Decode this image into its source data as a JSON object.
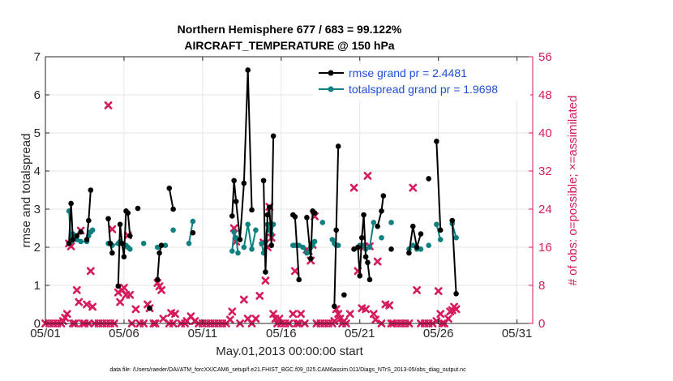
{
  "chart_data": {
    "type": "line",
    "title_line1": "Northern Hemisphere 677 / 683 = 99.122%",
    "title_line2": "AIRCRAFT_TEMPERATURE @ 150 hPa",
    "xlabel": "May.01,2013 00:00:00 start",
    "ylabel_left": "rmse and totalspread",
    "ylabel_right": "# of obs: o=possible; ×=assimilated",
    "footnote": "data file: /Users/raeder/DAI/ATM_forcXX/CAM6_setup/f.e21.FHIST_BGC.f09_025.CAM6assim.011/Diags_NTrS_2013-05/obs_diag_output.nc",
    "xlim": [
      1,
      32
    ],
    "ylim_left": [
      0,
      7
    ],
    "ylim_right": [
      0,
      56
    ],
    "x_ticks": [
      1,
      6,
      11,
      16,
      21,
      26,
      31
    ],
    "x_tick_labels": [
      "05/01",
      "05/06",
      "05/11",
      "05/16",
      "05/21",
      "05/26",
      "05/31"
    ],
    "y_left_ticks": [
      "0",
      "1",
      "2",
      "3",
      "4",
      "5",
      "6",
      "7"
    ],
    "y_right_ticks": [
      "0",
      "8",
      "16",
      "24",
      "32",
      "40",
      "48",
      "56"
    ],
    "colors": {
      "rmse": "#000000",
      "spread": "#0f8080",
      "obs": "#d61a5e",
      "legend_text": "#1f4fd6",
      "right_axis": "#d61a5e"
    },
    "legend": [
      {
        "label": "rmse grand pr = 2.4481",
        "series": "rmse"
      },
      {
        "label": "totalspread grand pr = 1.9698",
        "series": "spread"
      }
    ],
    "series": [
      {
        "name": "rmse",
        "axis": "left",
        "points": [
          [
            2.5,
            2.1
          ],
          [
            2.63,
            3.15
          ],
          [
            2.75,
            2.2
          ],
          null,
          [
            3.0,
            2.3
          ],
          [
            3.25,
            2.4
          ],
          null,
          [
            3.63,
            2.2
          ],
          [
            3.75,
            2.7
          ],
          [
            3.88,
            3.5
          ],
          null,
          [
            5.0,
            2.75
          ],
          [
            5.13,
            2.1
          ],
          [
            5.25,
            1.85
          ],
          null,
          [
            5.63,
            0.98
          ],
          [
            5.75,
            2.6
          ],
          [
            5.88,
            2.1
          ],
          [
            6.0,
            1.75
          ],
          [
            6.13,
            2.95
          ],
          [
            6.25,
            2.9
          ],
          [
            6.38,
            2.3
          ],
          null,
          [
            6.88,
            3.02
          ],
          null,
          [
            7.63,
            0.4
          ],
          null,
          [
            8.13,
            1.15
          ],
          [
            8.25,
            1.85
          ],
          [
            8.38,
            2.05
          ],
          null,
          [
            8.88,
            3.55
          ],
          [
            9.13,
            3.0
          ],
          null,
          [
            10.38,
            2.38
          ],
          null,
          [
            12.88,
            2.82
          ],
          [
            13.0,
            3.75
          ],
          [
            13.13,
            3.2
          ],
          [
            13.38,
            2.2
          ],
          [
            13.63,
            3.68
          ],
          [
            13.88,
            6.65
          ],
          [
            14.13,
            2.98
          ],
          null,
          [
            14.88,
            3.75
          ],
          [
            15.0,
            1.35
          ],
          [
            15.13,
            2.85
          ],
          [
            15.25,
            3.05
          ],
          [
            15.38,
            2.05
          ],
          [
            15.5,
            4.92
          ],
          null,
          [
            16.75,
            2.85
          ],
          [
            16.88,
            2.8
          ],
          [
            17.13,
            1.15
          ],
          null,
          [
            17.63,
            2.78
          ],
          [
            17.88,
            1.7
          ],
          [
            18.0,
            2.95
          ],
          [
            18.13,
            2.9
          ],
          null,
          [
            19.38,
            0.45
          ],
          [
            19.5,
            2.45
          ],
          [
            19.63,
            4.65
          ],
          null,
          [
            20.0,
            0.75
          ],
          null,
          [
            20.63,
            1.95
          ],
          [
            20.88,
            2.0
          ],
          [
            21.0,
            1.25
          ],
          [
            21.13,
            2.25
          ],
          [
            21.25,
            2.85
          ],
          [
            21.38,
            1.75
          ],
          [
            21.5,
            1.6
          ],
          [
            21.63,
            1.15
          ],
          null,
          [
            22.13,
            2.55
          ],
          [
            22.38,
            2.95
          ],
          [
            22.5,
            3.35
          ],
          null,
          [
            23.0,
            1.95
          ],
          null,
          [
            24.13,
            1.85
          ],
          [
            24.38,
            2.55
          ],
          [
            24.63,
            2.0
          ],
          [
            24.88,
            2.35
          ],
          null,
          [
            25.38,
            3.8
          ],
          null,
          [
            25.88,
            4.78
          ],
          [
            26.13,
            2.45
          ],
          null,
          [
            26.88,
            2.7
          ],
          [
            27.13,
            0.78
          ]
        ]
      },
      {
        "name": "totalspread",
        "axis": "left",
        "points": [
          [
            2.5,
            2.95
          ],
          [
            2.63,
            2.15
          ],
          [
            2.75,
            2.35
          ],
          [
            3.0,
            2.2
          ],
          [
            3.25,
            2.15
          ],
          [
            3.63,
            2.15
          ],
          [
            3.75,
            2.3
          ],
          [
            3.88,
            2.4
          ],
          [
            4.0,
            2.45
          ],
          null,
          [
            5.0,
            2.1
          ],
          [
            5.13,
            2.1
          ],
          [
            5.25,
            2.05
          ],
          [
            5.63,
            2.1
          ],
          [
            5.75,
            2.15
          ],
          [
            5.88,
            2.1
          ],
          [
            6.13,
            2.05
          ],
          [
            6.25,
            2.0
          ],
          [
            6.38,
            1.95
          ],
          null,
          [
            7.25,
            2.1
          ],
          null,
          [
            8.13,
            2.0
          ],
          null,
          [
            8.63,
            2.05
          ],
          null,
          [
            9.13,
            2.45
          ],
          null,
          [
            10.13,
            2.1
          ],
          [
            10.38,
            2.68
          ],
          null,
          [
            12.88,
            1.9
          ],
          [
            13.0,
            2.4
          ],
          [
            13.13,
            2.25
          ],
          [
            13.25,
            1.85
          ],
          null,
          [
            13.63,
            2.0
          ],
          [
            13.88,
            2.6
          ],
          [
            14.13,
            1.95
          ],
          [
            14.38,
            2.45
          ],
          null,
          [
            14.75,
            2.1
          ],
          [
            14.88,
            1.85
          ],
          [
            15.0,
            2.15
          ],
          [
            15.13,
            2.6
          ],
          [
            15.25,
            2.45
          ],
          [
            15.38,
            2.35
          ],
          [
            15.5,
            2.6
          ],
          null,
          [
            16.75,
            2.05
          ],
          [
            16.88,
            2.05
          ],
          [
            17.13,
            2.05
          ],
          [
            17.38,
            2.0
          ],
          [
            17.63,
            1.85
          ],
          [
            17.88,
            2.0
          ],
          [
            18.0,
            2.05
          ],
          [
            18.13,
            2.15
          ],
          null,
          [
            18.63,
            2.65
          ],
          null,
          [
            19.25,
            2.2
          ],
          [
            19.38,
            2.1
          ],
          [
            19.5,
            2.05
          ],
          [
            19.63,
            2.05
          ],
          null,
          [
            20.63,
            1.95
          ],
          [
            20.88,
            2.0
          ],
          [
            21.0,
            2.05
          ],
          [
            21.13,
            2.05
          ],
          [
            21.25,
            2.05
          ],
          [
            21.38,
            1.95
          ],
          [
            21.63,
            2.0
          ],
          [
            21.88,
            2.65
          ],
          null,
          [
            22.38,
            2.25
          ],
          null,
          [
            23.0,
            2.65
          ],
          null,
          [
            24.13,
            1.95
          ],
          [
            24.38,
            2.05
          ],
          [
            24.63,
            1.95
          ],
          [
            24.88,
            1.95
          ],
          null,
          [
            25.38,
            2.05
          ],
          null,
          [
            25.88,
            2.6
          ],
          [
            26.13,
            2.2
          ],
          null,
          [
            26.88,
            2.62
          ],
          [
            27.13,
            2.25
          ]
        ]
      },
      {
        "name": "obs_assimilated",
        "axis": "right",
        "marker": "x",
        "points": [
          [
            1.0,
            0.0
          ],
          [
            1.25,
            0.0
          ],
          [
            1.5,
            0.0
          ],
          [
            1.75,
            0.0
          ],
          [
            2.0,
            0.0
          ],
          [
            2.13,
            0.5
          ],
          [
            2.25,
            1.2
          ],
          [
            2.38,
            2.0
          ],
          [
            2.5,
            16.8
          ],
          [
            2.63,
            16.2
          ],
          [
            2.75,
            0.0
          ],
          [
            2.88,
            0.0
          ],
          [
            3.0,
            7.0
          ],
          [
            3.13,
            4.5
          ],
          [
            3.25,
            19.5
          ],
          [
            3.38,
            0.0
          ],
          [
            3.5,
            0.0
          ],
          [
            3.63,
            4.0
          ],
          [
            3.75,
            0.0
          ],
          [
            3.88,
            11.0
          ],
          [
            4.0,
            3.5
          ],
          [
            4.13,
            0.0
          ],
          [
            4.38,
            0.0
          ],
          [
            4.63,
            0.0
          ],
          [
            4.88,
            0.0
          ],
          [
            5.0,
            45.8
          ],
          [
            5.13,
            0.0
          ],
          [
            5.25,
            19.8
          ],
          [
            5.38,
            0.0
          ],
          [
            5.63,
            6.5
          ],
          [
            5.75,
            4.5
          ],
          [
            5.88,
            7.0
          ],
          [
            6.0,
            7.5
          ],
          [
            6.13,
            6.0
          ],
          [
            6.25,
            18.5
          ],
          [
            6.38,
            6.0
          ],
          [
            6.5,
            0.0
          ],
          [
            6.75,
            3.0
          ],
          [
            7.0,
            0.0
          ],
          [
            7.25,
            0.0
          ],
          [
            7.5,
            4.0
          ],
          [
            7.63,
            3.2
          ],
          [
            7.88,
            0.0
          ],
          [
            8.0,
            0.0
          ],
          [
            8.13,
            8.5
          ],
          [
            8.25,
            7.8
          ],
          [
            8.38,
            7.0
          ],
          [
            8.5,
            1.0
          ],
          [
            8.88,
            0.0
          ],
          [
            9.0,
            2.2
          ],
          [
            9.13,
            0.0
          ],
          [
            9.25,
            2.0
          ],
          [
            9.63,
            0.0
          ],
          [
            9.88,
            0.0
          ],
          [
            10.0,
            0.5
          ],
          [
            10.25,
            1.5
          ],
          [
            10.5,
            0.5
          ],
          [
            10.75,
            0.0
          ],
          [
            11.0,
            0.0
          ],
          [
            11.25,
            0.0
          ],
          [
            11.5,
            0.0
          ],
          [
            11.75,
            0.0
          ],
          [
            12.0,
            0.0
          ],
          [
            12.25,
            0.0
          ],
          [
            12.5,
            0.0
          ],
          [
            12.75,
            0.8
          ],
          [
            12.88,
            2.5
          ],
          [
            13.0,
            20.0
          ],
          [
            13.13,
            17.2
          ],
          [
            13.38,
            0.0
          ],
          [
            13.63,
            5.0
          ],
          [
            13.88,
            1.0
          ],
          [
            14.13,
            0.0
          ],
          [
            14.38,
            1.0
          ],
          [
            14.63,
            5.8
          ],
          [
            14.88,
            17.0
          ],
          [
            15.0,
            9.0
          ],
          [
            15.13,
            16.0
          ],
          [
            15.25,
            24.5
          ],
          [
            15.38,
            18.0
          ],
          [
            15.5,
            2.0
          ],
          [
            15.63,
            1.0
          ],
          [
            15.75,
            0.0
          ],
          [
            15.88,
            1.0
          ],
          [
            16.0,
            0.0
          ],
          [
            16.25,
            0.0
          ],
          [
            16.5,
            0.0
          ],
          [
            16.75,
            2.0
          ],
          [
            16.88,
            11.0
          ],
          [
            17.0,
            0.0
          ],
          [
            17.13,
            0.0
          ],
          [
            17.25,
            2.0
          ],
          [
            17.5,
            0.0
          ],
          [
            17.63,
            15.5
          ],
          [
            17.75,
            15.2
          ],
          [
            17.88,
            13.2
          ],
          [
            18.0,
            16.5
          ],
          [
            18.13,
            22.5
          ],
          [
            18.25,
            0.0
          ],
          [
            18.5,
            0.0
          ],
          [
            18.75,
            0.0
          ],
          [
            19.0,
            0.0
          ],
          [
            19.25,
            0.0
          ],
          [
            19.38,
            0.5
          ],
          [
            19.5,
            3.0
          ],
          [
            19.63,
            2.0
          ],
          [
            19.75,
            1.0
          ],
          [
            19.88,
            0.0
          ],
          [
            20.0,
            0.5
          ],
          [
            20.13,
            0.0
          ],
          [
            20.38,
            2.0
          ],
          [
            20.63,
            28.5
          ],
          [
            20.88,
            11.0
          ],
          [
            21.13,
            3.2
          ],
          [
            21.25,
            16.0
          ],
          [
            21.38,
            3.0
          ],
          [
            21.5,
            31.0
          ],
          [
            21.63,
            16.2
          ],
          [
            21.88,
            2.0
          ],
          [
            22.0,
            0.8
          ],
          [
            22.13,
            13.0
          ],
          [
            22.38,
            0.0
          ],
          [
            22.63,
            4.0
          ],
          [
            22.88,
            3.8
          ],
          [
            23.0,
            0.0
          ],
          [
            23.13,
            0.0
          ],
          [
            23.38,
            0.0
          ],
          [
            23.63,
            0.0
          ],
          [
            23.88,
            0.0
          ],
          [
            24.13,
            0.0
          ],
          [
            24.38,
            28.5
          ],
          [
            24.63,
            7.0
          ],
          [
            24.88,
            0.0
          ],
          [
            25.13,
            0.0
          ],
          [
            25.38,
            0.0
          ],
          [
            25.63,
            0.0
          ],
          [
            25.88,
            0.5
          ],
          [
            26.0,
            6.8
          ],
          [
            26.13,
            2.0
          ],
          [
            26.25,
            0.0
          ],
          [
            26.38,
            0.0
          ],
          [
            26.63,
            1.0
          ],
          [
            26.75,
            2.5
          ],
          [
            26.88,
            2.8
          ],
          [
            27.0,
            3.5
          ],
          [
            27.13,
            3.0
          ]
        ]
      }
    ]
  }
}
